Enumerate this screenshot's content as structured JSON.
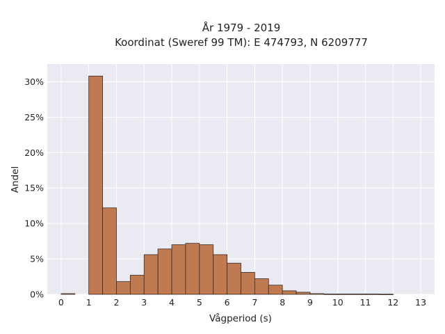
{
  "chart_data": {
    "type": "bar",
    "title_lines": [
      "År 1979 - 2019",
      "Koordinat (Sweref 99 TM): E 474793, N 6209777"
    ],
    "xlabel": "Vågperiod (s)",
    "ylabel": "Andel",
    "xlim": [
      -0.5,
      13.5
    ],
    "ylim": [
      0,
      32.5
    ],
    "x_ticks": [
      0,
      1,
      2,
      3,
      4,
      5,
      6,
      7,
      8,
      9,
      10,
      11,
      12,
      13
    ],
    "y_ticks": [
      0,
      5,
      10,
      15,
      20,
      25,
      30
    ],
    "y_tick_labels": [
      "0%",
      "5%",
      "10%",
      "15%",
      "20%",
      "25%",
      "30%"
    ],
    "bin_width": 0.5,
    "bin_starts": [
      0,
      1,
      1.5,
      2,
      2.5,
      3,
      3.5,
      4,
      4.5,
      5,
      5.5,
      6,
      6.5,
      7,
      7.5,
      8,
      8.5,
      9,
      9.5,
      10,
      10.5,
      11,
      11.5
    ],
    "values": [
      0.1,
      30.8,
      12.2,
      1.8,
      2.7,
      5.6,
      6.4,
      7.0,
      7.2,
      7.0,
      5.6,
      4.4,
      3.1,
      2.2,
      1.3,
      0.5,
      0.3,
      0.1,
      0.05,
      0.05,
      0.05,
      0.05,
      0.03
    ],
    "bar_color": "#c07a52",
    "bar_edge_color": "#3a2a20",
    "background_color": "#eaeaf2",
    "grid": true,
    "grid_color": "#ffffff"
  }
}
